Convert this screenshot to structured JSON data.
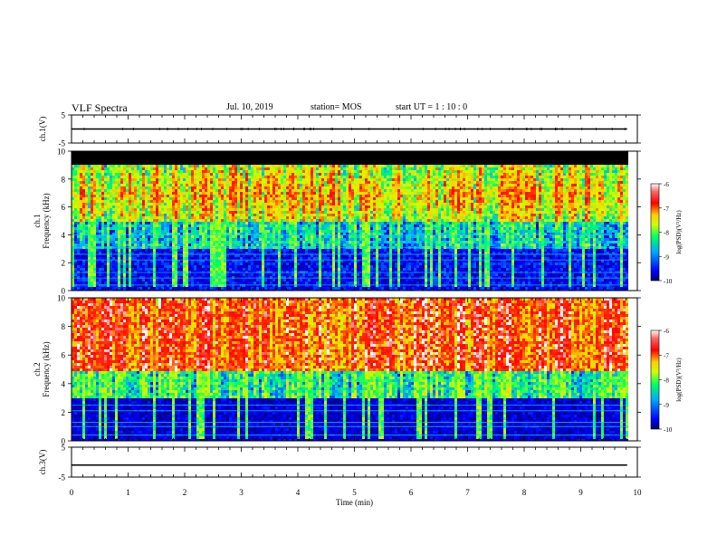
{
  "header": {
    "title": "VLF Spectra",
    "date": "Jul. 10, 2019",
    "station": "station= MOS",
    "start": "start  UT =   1 : 10 : 0"
  },
  "chart_data": [
    {
      "type": "line",
      "name": "ch1-voltage",
      "ylabel": "ch.1(V)",
      "ylim": [
        -5,
        5
      ],
      "yticks": [
        "5",
        "-5"
      ],
      "xlim": [
        0,
        10
      ],
      "x": [
        0,
        9.82
      ],
      "values": [
        0,
        0
      ]
    },
    {
      "type": "heatmap",
      "name": "ch1-spectrogram",
      "ylabel": "ch.1\nFrequency (kHz)",
      "ylim": [
        0,
        10
      ],
      "yticks": [
        "0",
        "2",
        "4",
        "6",
        "8",
        "10"
      ],
      "xlim": [
        0,
        10
      ],
      "data_extent_min": 9.82,
      "colorbar": {
        "label": "log(PSD)(V²/Hz)",
        "ticks": [
          "-6",
          "-7",
          "-8",
          "-9",
          "-10"
        ],
        "range": [
          -10,
          -6
        ]
      },
      "saturation_top_khz": 9.2
    },
    {
      "type": "heatmap",
      "name": "ch2-spectrogram",
      "ylabel": "ch.2\nFrequency (kHz)",
      "ylim": [
        0,
        10
      ],
      "yticks": [
        "0",
        "2",
        "4",
        "6",
        "8",
        "10"
      ],
      "xlim": [
        0,
        10
      ],
      "data_extent_min": 9.82,
      "colorbar": {
        "label": "log(PSD)(V²/Hz)",
        "ticks": [
          "-6",
          "-7",
          "-8",
          "-9",
          "-10"
        ],
        "range": [
          -10,
          -6
        ]
      }
    },
    {
      "type": "line",
      "name": "ch3-voltage",
      "ylabel": "ch.3(V)",
      "ylim": [
        -5,
        5
      ],
      "yticks": [
        "5",
        "-5"
      ],
      "xlim": [
        0,
        10
      ],
      "x": [
        0,
        9.82
      ],
      "values": [
        -1,
        -1
      ]
    }
  ],
  "xaxis": {
    "label": "Time (min)",
    "ticks": [
      "0",
      "1",
      "2",
      "3",
      "4",
      "5",
      "6",
      "7",
      "8",
      "9",
      "10"
    ]
  },
  "colors": {
    "axis": "#000000",
    "background": "#ffffff",
    "colormap": [
      "#000066",
      "#0000ff",
      "#00aaff",
      "#00ff66",
      "#ccff00",
      "#ffcc00",
      "#ff3300",
      "#ff0000",
      "#ffffff"
    ]
  }
}
